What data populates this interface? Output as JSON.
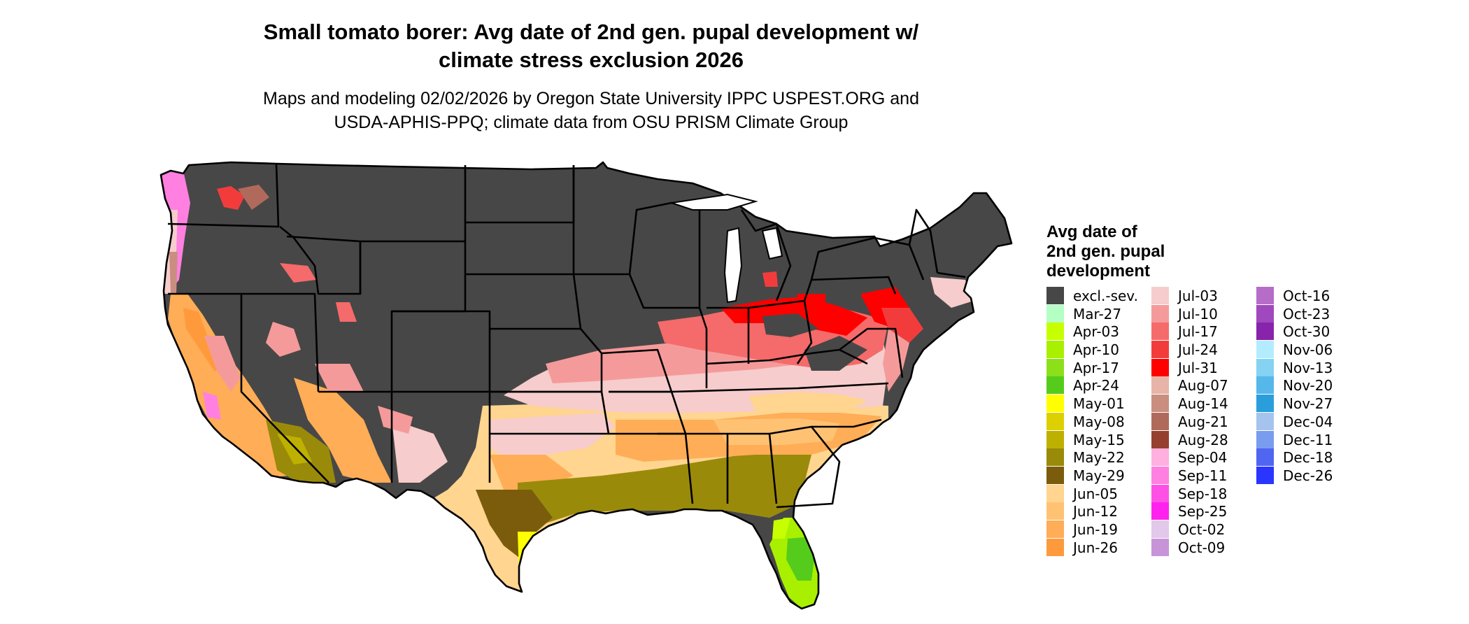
{
  "title_line1": "Small tomato borer: Avg date of 2nd gen. pupal development w/",
  "title_line2": "climate stress exclusion 2026",
  "subtitle_line1": "Maps and modeling 02/02/2026 by Oregon State University IPPC USPEST.ORG and",
  "subtitle_line2": "USDA-APHIS-PPQ; climate data from OSU PRISM Climate Group",
  "legend": {
    "title_line1": "Avg date of",
    "title_line2": "2nd gen. pupal",
    "title_line3": "development",
    "items": [
      {
        "label": "excl.-sev.",
        "color": "#474747"
      },
      {
        "label": "Mar-27",
        "color": "#b3ffc4"
      },
      {
        "label": "Apr-03",
        "color": "#c8ff00"
      },
      {
        "label": "Apr-10",
        "color": "#a8f000"
      },
      {
        "label": "Apr-17",
        "color": "#8be01a"
      },
      {
        "label": "Apr-24",
        "color": "#55cc1c"
      },
      {
        "label": "May-01",
        "color": "#ffff00"
      },
      {
        "label": "May-08",
        "color": "#dcd000"
      },
      {
        "label": "May-15",
        "color": "#bdb000"
      },
      {
        "label": "May-22",
        "color": "#9a8a0a"
      },
      {
        "label": "May-29",
        "color": "#7a5c0c"
      },
      {
        "label": "Jun-05",
        "color": "#ffd58f"
      },
      {
        "label": "Jun-12",
        "color": "#ffc273"
      },
      {
        "label": "Jun-19",
        "color": "#ffad57"
      },
      {
        "label": "Jun-26",
        "color": "#ff9a3c"
      },
      {
        "label": "Jul-03",
        "color": "#f6cccc"
      },
      {
        "label": "Jul-10",
        "color": "#f59a9a"
      },
      {
        "label": "Jul-17",
        "color": "#f56a6a"
      },
      {
        "label": "Jul-24",
        "color": "#f23c3c"
      },
      {
        "label": "Jul-31",
        "color": "#ff0000"
      },
      {
        "label": "Aug-07",
        "color": "#e8b4a8"
      },
      {
        "label": "Aug-14",
        "color": "#c98e80"
      },
      {
        "label": "Aug-21",
        "color": "#b06a5c"
      },
      {
        "label": "Aug-28",
        "color": "#964030"
      },
      {
        "label": "Sep-04",
        "color": "#ffb0de"
      },
      {
        "label": "Sep-11",
        "color": "#ff80e0"
      },
      {
        "label": "Sep-18",
        "color": "#ff50e6"
      },
      {
        "label": "Sep-25",
        "color": "#ff22ee"
      },
      {
        "label": "Oct-02",
        "color": "#e2c8ea"
      },
      {
        "label": "Oct-09",
        "color": "#c894d8"
      },
      {
        "label": "Oct-16",
        "color": "#b66cc8"
      },
      {
        "label": "Oct-23",
        "color": "#a048be"
      },
      {
        "label": "Oct-30",
        "color": "#8824ac"
      },
      {
        "label": "Nov-06",
        "color": "#b4ecff"
      },
      {
        "label": "Nov-13",
        "color": "#86d2f2"
      },
      {
        "label": "Nov-20",
        "color": "#56b8ea"
      },
      {
        "label": "Nov-27",
        "color": "#2a9edc"
      },
      {
        "label": "Dec-04",
        "color": "#a4c4ee"
      },
      {
        "label": "Dec-11",
        "color": "#7a9cee"
      },
      {
        "label": "Dec-18",
        "color": "#5066f2"
      },
      {
        "label": "Dec-26",
        "color": "#2a36ff"
      }
    ]
  },
  "map_palette": {
    "excluded": "#474747",
    "border": "#000000"
  }
}
